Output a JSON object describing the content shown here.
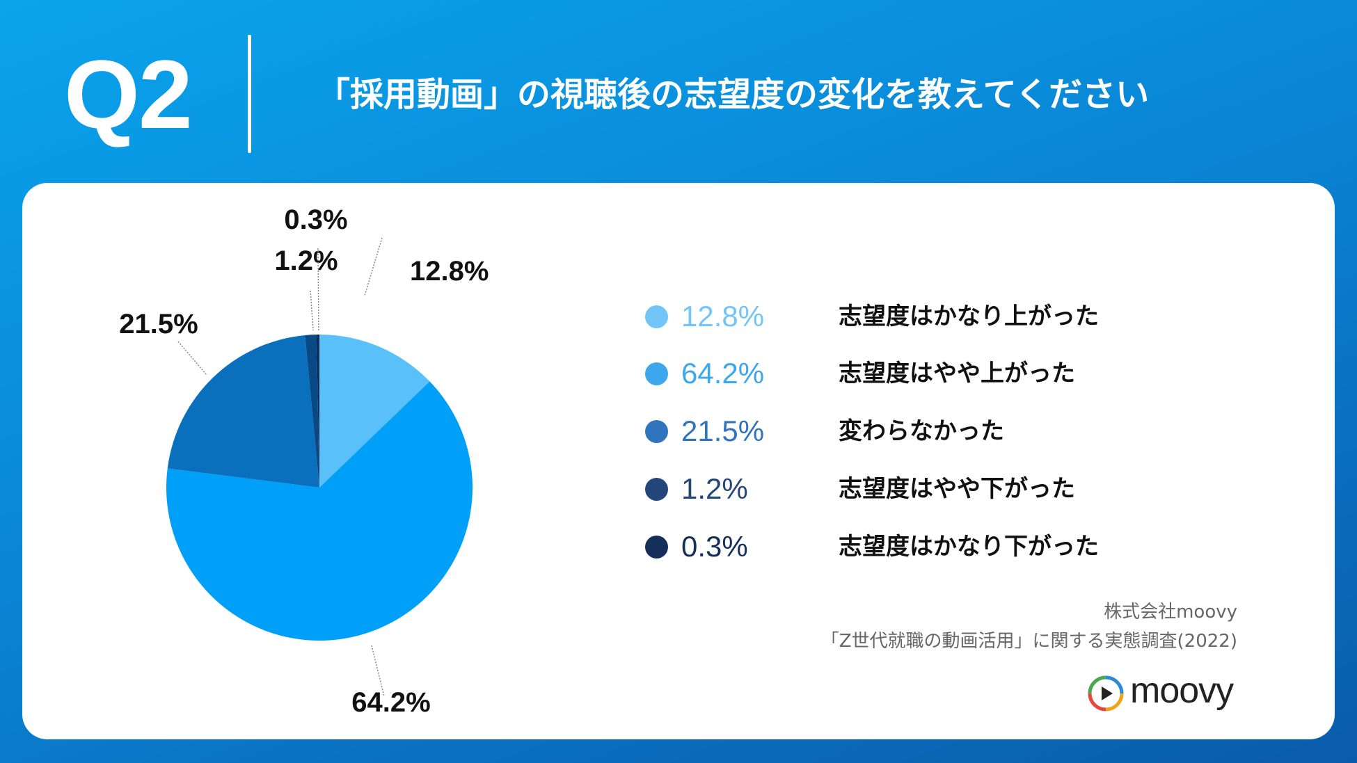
{
  "header": {
    "question": "Q2",
    "title": "「採用動画」の視聴後の志望度の変化を教えてください"
  },
  "chart_data": {
    "type": "pie",
    "categories": [
      "志望度はかなり上がった",
      "志望度はやや上がった",
      "変わらなかった",
      "志望度はやや下がった",
      "志望度はかなり下がった"
    ],
    "values": [
      12.8,
      64.2,
      21.5,
      1.2,
      0.3
    ],
    "value_labels": [
      "12.8%",
      "64.2%",
      "21.5%",
      "1.2%",
      "0.3%"
    ],
    "colors": [
      "#5ac0f9",
      "#00a0f8",
      "#0a70be",
      "#094a86",
      "#072c57"
    ],
    "legend_colors": [
      "#72c6f7",
      "#3ca6ee",
      "#2f74bd",
      "#22467a",
      "#152f5a"
    ],
    "legend_placement": "right",
    "start_angle": "12 o'clock",
    "direction": "clockwise"
  },
  "source": {
    "company": "株式会社moovy",
    "survey": "「Z世代就職の動画活用」に関する実態調査(2022)"
  },
  "brand": {
    "name": "moovy",
    "icon": "play-circle-icon"
  }
}
